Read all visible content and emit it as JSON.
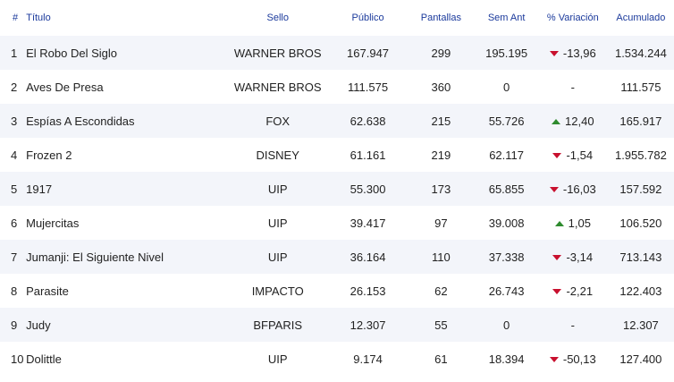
{
  "headers": {
    "num": "#",
    "title": "Título",
    "sello": "Sello",
    "publico": "Público",
    "pantallas": "Pantallas",
    "sem_ant": "Sem Ant",
    "variacion": "% Variación",
    "acumulado": "Acumulado"
  },
  "colors": {
    "header_text": "#1b3a9c",
    "stripe": "#f3f5fa",
    "down": "#c8102e",
    "up": "#2e8b2e"
  },
  "rows": [
    {
      "num": "1",
      "title": "El Robo Del Siglo",
      "sello": "WARNER BROS",
      "publico": "167.947",
      "pantallas": "299",
      "sem_ant": "195.195",
      "trend": "down",
      "variacion": "-13,96",
      "acumulado": "1.534.244"
    },
    {
      "num": "2",
      "title": "Aves De Presa",
      "sello": "WARNER BROS",
      "publico": "111.575",
      "pantallas": "360",
      "sem_ant": "0",
      "trend": "none",
      "variacion": "-",
      "acumulado": "111.575"
    },
    {
      "num": "3",
      "title": "Espías A Escondidas",
      "sello": "FOX",
      "publico": "62.638",
      "pantallas": "215",
      "sem_ant": "55.726",
      "trend": "up",
      "variacion": "12,40",
      "acumulado": "165.917"
    },
    {
      "num": "4",
      "title": "Frozen 2",
      "sello": "DISNEY",
      "publico": "61.161",
      "pantallas": "219",
      "sem_ant": "62.117",
      "trend": "down",
      "variacion": "-1,54",
      "acumulado": "1.955.782"
    },
    {
      "num": "5",
      "title": "1917",
      "sello": "UIP",
      "publico": "55.300",
      "pantallas": "173",
      "sem_ant": "65.855",
      "trend": "down",
      "variacion": "-16,03",
      "acumulado": "157.592"
    },
    {
      "num": "6",
      "title": "Mujercitas",
      "sello": "UIP",
      "publico": "39.417",
      "pantallas": "97",
      "sem_ant": "39.008",
      "trend": "up",
      "variacion": "1,05",
      "acumulado": "106.520"
    },
    {
      "num": "7",
      "title": "Jumanji: El Siguiente Nivel",
      "sello": "UIP",
      "publico": "36.164",
      "pantallas": "110",
      "sem_ant": "37.338",
      "trend": "down",
      "variacion": "-3,14",
      "acumulado": "713.143"
    },
    {
      "num": "8",
      "title": "Parasite",
      "sello": "IMPACTO",
      "publico": "26.153",
      "pantallas": "62",
      "sem_ant": "26.743",
      "trend": "down",
      "variacion": "-2,21",
      "acumulado": "122.403"
    },
    {
      "num": "9",
      "title": "Judy",
      "sello": "BFPARIS",
      "publico": "12.307",
      "pantallas": "55",
      "sem_ant": "0",
      "trend": "none",
      "variacion": "-",
      "acumulado": "12.307"
    },
    {
      "num": "10",
      "title": "Dolittle",
      "sello": "UIP",
      "publico": "9.174",
      "pantallas": "61",
      "sem_ant": "18.394",
      "trend": "down",
      "variacion": "-50,13",
      "acumulado": "127.400"
    }
  ]
}
